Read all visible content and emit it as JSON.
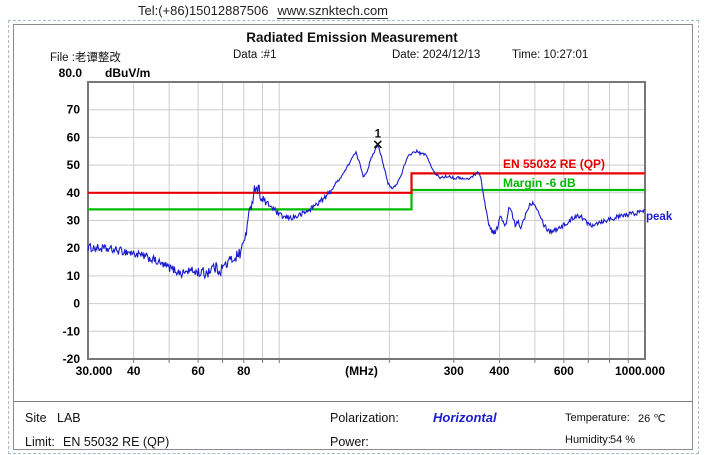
{
  "header": {
    "tel": "Tel:(+86)15012887506",
    "website": "www.sznktech.com"
  },
  "report": {
    "title": "Radiated Emission Measurement",
    "file_label": "File :",
    "file_value": "老谭整改",
    "data_label": "Data :#1",
    "date_label": "Date: 2024/12/13",
    "time_label": "Time: 10:27:01"
  },
  "footer": {
    "site_label": "Site",
    "site_value": "LAB",
    "limit_label": "Limit:",
    "limit_value": "EN 55032 RE (QP)",
    "polarization_label": "Polarization:",
    "polarization_value": "Horizontal",
    "power_label": "Power:",
    "power_value": "",
    "temperature_label": "Temperature:",
    "temperature_value": "26 ℃",
    "humidity_label": "Humidity:",
    "humidity_value": "54 %"
  },
  "colors": {
    "trace": "#1a1acd",
    "limit": "#e80000",
    "margin": "#00bb00",
    "grid": "#cdcdcd",
    "plot_border": "#777777",
    "marker": "#111111",
    "peak_label": "#1d1dd0"
  },
  "chart_data": {
    "type": "line",
    "title": "Radiated Emission Measurement",
    "x_axis": {
      "scale": "log",
      "min": 30,
      "max": 1000,
      "unit_label": "(MHz)",
      "ticks": [
        {
          "f": 30,
          "label": "30.000",
          "dx": 6
        },
        {
          "f": 40,
          "label": "40"
        },
        {
          "f": 60,
          "label": "60"
        },
        {
          "f": 80,
          "label": "80"
        },
        {
          "f": 300,
          "label": "300"
        },
        {
          "f": 400,
          "label": "400"
        },
        {
          "f": 600,
          "label": "600"
        },
        {
          "f": 1000,
          "label": "1000.000",
          "dx": -5
        }
      ],
      "grid_values": [
        40,
        50,
        60,
        70,
        80,
        90,
        100,
        200,
        300,
        400,
        500,
        600,
        700,
        800,
        900
      ]
    },
    "y_axis": {
      "label": "dBuV/m",
      "max_label": "80.0",
      "min": -20,
      "max": 80,
      "tick_step": 10,
      "tick_values": [
        70,
        60,
        50,
        40,
        30,
        20,
        10,
        0,
        -10,
        -20
      ]
    },
    "labels": {
      "limit": "EN 55032 RE (QP)",
      "margin": "Margin -6 dB",
      "trace": "peak"
    },
    "marker": {
      "id": "1",
      "freq": 186,
      "value": 57.5
    },
    "series": [
      {
        "name": "peak",
        "role": "trace",
        "noise_zones": [
          {
            "max_f": 60,
            "amp": 1.5
          },
          {
            "max_f": 92,
            "amp": 2.2
          },
          {
            "max_f": 140,
            "amp": 1.0
          },
          {
            "max_f": 360,
            "amp": 0.45
          },
          {
            "max_f": 1000,
            "amp": 0.9
          }
        ],
        "anchors": [
          [
            30,
            20.3
          ],
          [
            33,
            19.8
          ],
          [
            36,
            19.2
          ],
          [
            39,
            18.5
          ],
          [
            42,
            17.3
          ],
          [
            45,
            16
          ],
          [
            48,
            14
          ],
          [
            51,
            12.5
          ],
          [
            54,
            10.8
          ],
          [
            57,
            12
          ],
          [
            60,
            11.2
          ],
          [
            63,
            11
          ],
          [
            66,
            13.2
          ],
          [
            69,
            12.2
          ],
          [
            72,
            14.5
          ],
          [
            75,
            16.5
          ],
          [
            78,
            18
          ],
          [
            80,
            22
          ],
          [
            82,
            29
          ],
          [
            84,
            36.5
          ],
          [
            86,
            42.5
          ],
          [
            88,
            41
          ],
          [
            90,
            37.5
          ],
          [
            93,
            36
          ],
          [
            96,
            34.5
          ],
          [
            100,
            32
          ],
          [
            104,
            31
          ],
          [
            108,
            31
          ],
          [
            112,
            31.5
          ],
          [
            116,
            32.5
          ],
          [
            120,
            33.5
          ],
          [
            124,
            35
          ],
          [
            128,
            36.5
          ],
          [
            133,
            38
          ],
          [
            138,
            40.5
          ],
          [
            143,
            43.5
          ],
          [
            148,
            46
          ],
          [
            153,
            49
          ],
          [
            158,
            52.5
          ],
          [
            162,
            54.5
          ],
          [
            166,
            50.5
          ],
          [
            170,
            45.8
          ],
          [
            174,
            48
          ],
          [
            178,
            52
          ],
          [
            182,
            55
          ],
          [
            186,
            57.5
          ],
          [
            190,
            53.5
          ],
          [
            194,
            48.5
          ],
          [
            198,
            43.5
          ],
          [
            203,
            41.5
          ],
          [
            208,
            42.5
          ],
          [
            214,
            45.5
          ],
          [
            220,
            50
          ],
          [
            226,
            53.5
          ],
          [
            232,
            54.5
          ],
          [
            238,
            55
          ],
          [
            244,
            54
          ],
          [
            250,
            54
          ],
          [
            256,
            52
          ],
          [
            262,
            48.5
          ],
          [
            268,
            46.5
          ],
          [
            275,
            45.5
          ],
          [
            283,
            45.8
          ],
          [
            292,
            46
          ],
          [
            302,
            45.2
          ],
          [
            312,
            45.5
          ],
          [
            322,
            44.8
          ],
          [
            332,
            45.2
          ],
          [
            342,
            46.5
          ],
          [
            350,
            47.8
          ],
          [
            356,
            45
          ],
          [
            364,
            37
          ],
          [
            372,
            30
          ],
          [
            380,
            26.5
          ],
          [
            388,
            25.5
          ],
          [
            394,
            27
          ],
          [
            400,
            30.5
          ],
          [
            405,
            31.5
          ],
          [
            410,
            29
          ],
          [
            415,
            27.5
          ],
          [
            420,
            31
          ],
          [
            425,
            34.5
          ],
          [
            431,
            33.5
          ],
          [
            437,
            30
          ],
          [
            443,
            28
          ],
          [
            449,
            29.5
          ],
          [
            456,
            27.5
          ],
          [
            463,
            29
          ],
          [
            471,
            32
          ],
          [
            480,
            35
          ],
          [
            490,
            36.5
          ],
          [
            500,
            36
          ],
          [
            510,
            34
          ],
          [
            520,
            31
          ],
          [
            530,
            28.5
          ],
          [
            540,
            27
          ],
          [
            550,
            26
          ],
          [
            562,
            26.5
          ],
          [
            576,
            27
          ],
          [
            590,
            28
          ],
          [
            605,
            28.5
          ],
          [
            620,
            29.5
          ],
          [
            636,
            31
          ],
          [
            652,
            32
          ],
          [
            668,
            31.5
          ],
          [
            684,
            30
          ],
          [
            700,
            29
          ],
          [
            716,
            28.5
          ],
          [
            734,
            29
          ],
          [
            754,
            29.5
          ],
          [
            776,
            30
          ],
          [
            800,
            30.5
          ],
          [
            828,
            31
          ],
          [
            858,
            31.5
          ],
          [
            890,
            32
          ],
          [
            925,
            32.5
          ],
          [
            962,
            33
          ],
          [
            1000,
            33.5
          ]
        ]
      },
      {
        "name": "EN 55032 RE (QP)",
        "role": "limit",
        "points": [
          [
            30,
            40
          ],
          [
            230,
            40
          ],
          [
            230,
            47
          ],
          [
            1000,
            47
          ]
        ]
      },
      {
        "name": "Margin -6 dB",
        "role": "margin",
        "points": [
          [
            30,
            34
          ],
          [
            230,
            34
          ],
          [
            230,
            41
          ],
          [
            1000,
            41
          ]
        ]
      }
    ]
  }
}
